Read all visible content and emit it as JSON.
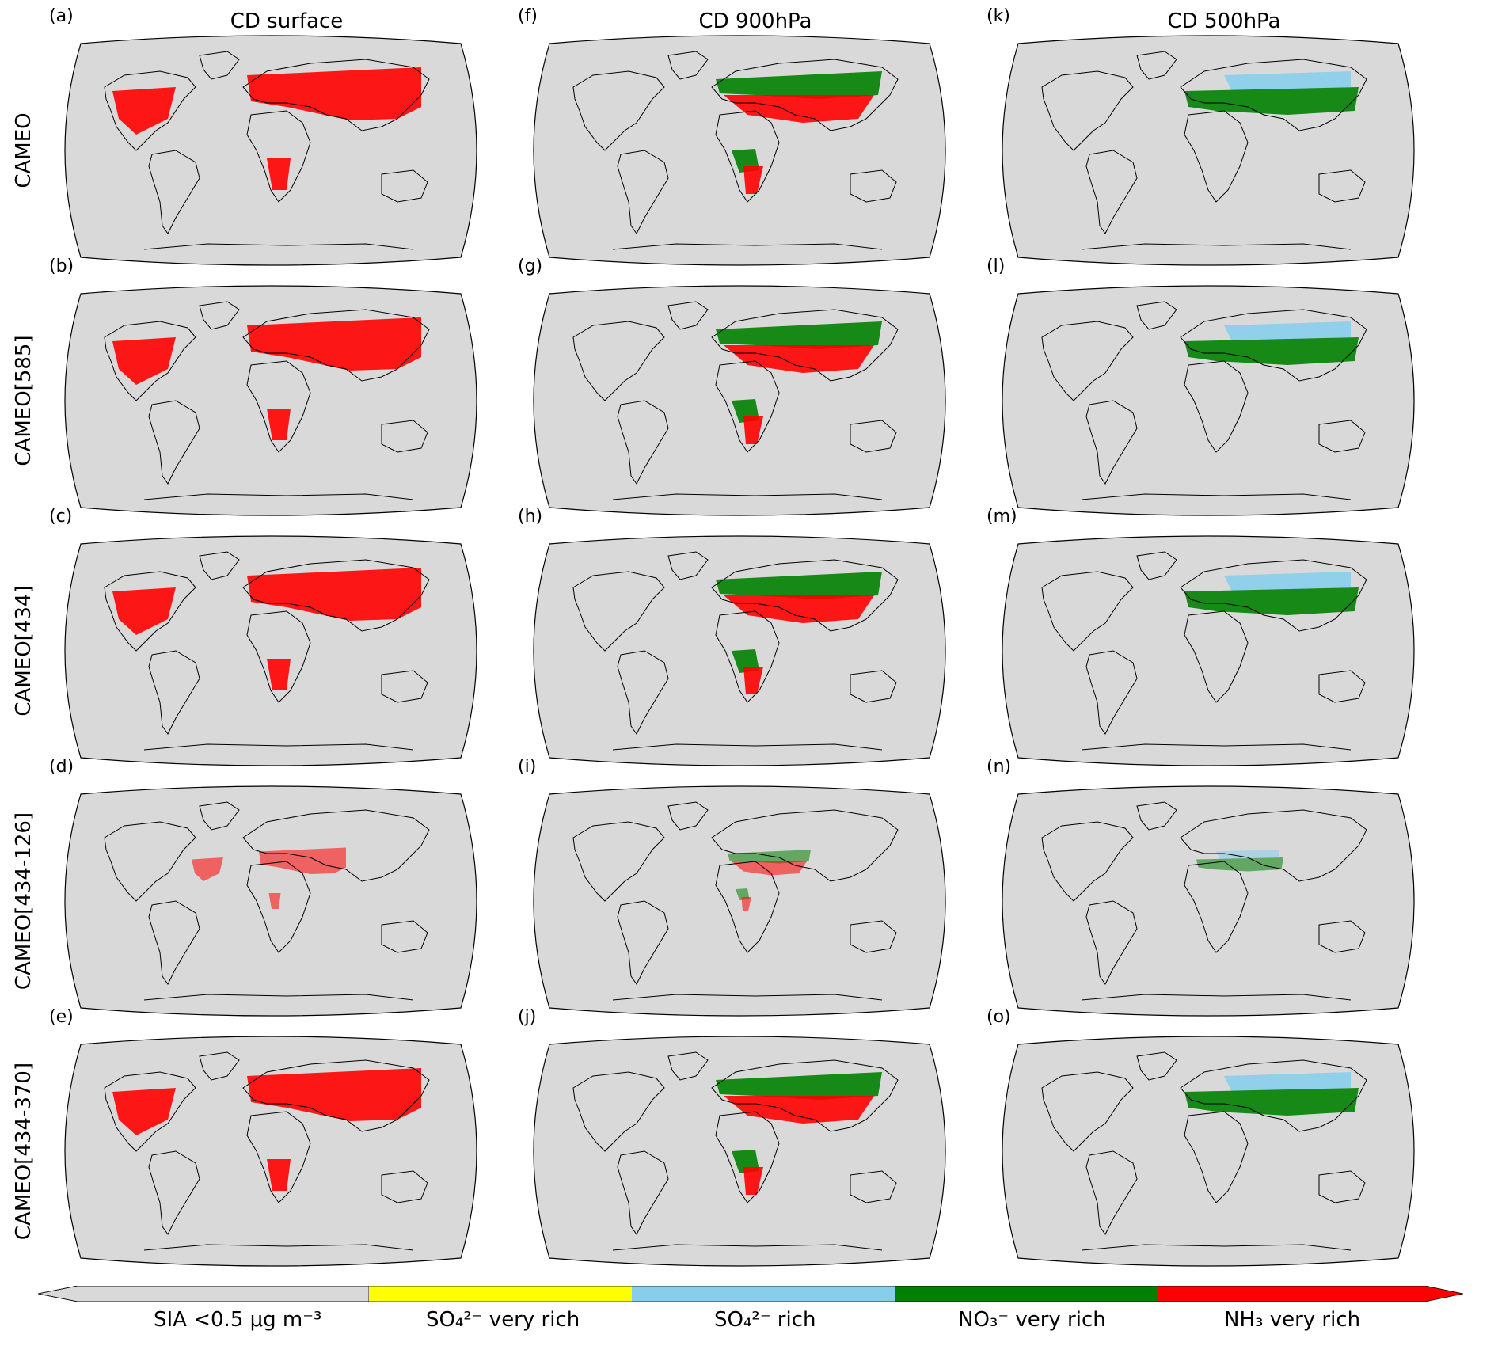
{
  "columns": [
    {
      "title": "CD surface"
    },
    {
      "title": "CD 900hPa"
    },
    {
      "title": "CD 500hPa"
    }
  ],
  "rows": [
    {
      "label": "CAMEO",
      "letters": [
        "(a)",
        "(f)",
        "(k)"
      ]
    },
    {
      "label": "CAMEO[585]",
      "letters": [
        "(b)",
        "(g)",
        "(l)"
      ]
    },
    {
      "label": "CAMEO[434]",
      "letters": [
        "(c)",
        "(h)",
        "(m)"
      ]
    },
    {
      "label": "CAMEO[434-126]",
      "letters": [
        "(d)",
        "(i)",
        "(n)"
      ]
    },
    {
      "label": "CAMEO[434-370]",
      "letters": [
        "(e)",
        "(j)",
        "(o)"
      ]
    }
  ],
  "legend": {
    "categories": [
      {
        "key": "low",
        "label": "SIA <0.5 μg m⁻³",
        "color": "#d9d9d9"
      },
      {
        "key": "so4_very",
        "label": "SO₄²⁻ very rich",
        "color": "#ffff00"
      },
      {
        "key": "so4_rich",
        "label": "SO₄²⁻ rich",
        "color": "#87ceeb"
      },
      {
        "key": "no3_very",
        "label": "NO₃⁻ very rich",
        "color": "#008000"
      },
      {
        "key": "nh3_very",
        "label": "NH₃ very rich",
        "color": "#ff0000"
      }
    ]
  },
  "colors": {
    "ocean_land_bg": "#d9d9d9",
    "coast": "#000000"
  }
}
